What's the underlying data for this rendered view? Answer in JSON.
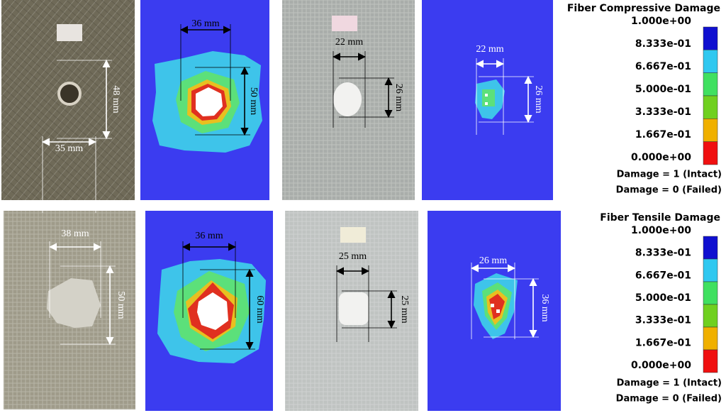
{
  "panels": [
    {
      "width_label": "35 mm",
      "height_label": "48 mm"
    },
    {
      "width_label": "36 mm",
      "height_label": "50 mm"
    },
    {
      "width_label": "22 mm",
      "height_label": "26 mm"
    },
    {
      "width_label": "22 mm",
      "height_label": "26 mm"
    },
    {
      "width_label": "38 mm",
      "height_label": "50 mm"
    },
    {
      "width_label": "36 mm",
      "height_label": "60 mm"
    },
    {
      "width_label": "25 mm",
      "height_label": "25 mm"
    },
    {
      "width_label": "26 mm",
      "height_label": "36 mm"
    }
  ],
  "legends": [
    {
      "title": "Fiber Compressive Damage",
      "ticks": [
        "1.000e+00",
        "8.333e-01",
        "6.667e-01",
        "5.000e-01",
        "3.333e-01",
        "1.667e-01",
        "0.000e+00"
      ],
      "notes": [
        "Damage = 1 (Intact)",
        "Damage = 0 (Failed)"
      ]
    },
    {
      "title": "Fiber Tensile Damage",
      "ticks": [
        "1.000e+00",
        "8.333e-01",
        "6.667e-01",
        "5.000e-01",
        "3.333e-01",
        "1.667e-01",
        "0.000e+00"
      ],
      "notes": [
        "Damage = 1 (Intact)",
        "Damage = 0 (Failed)"
      ]
    }
  ]
}
